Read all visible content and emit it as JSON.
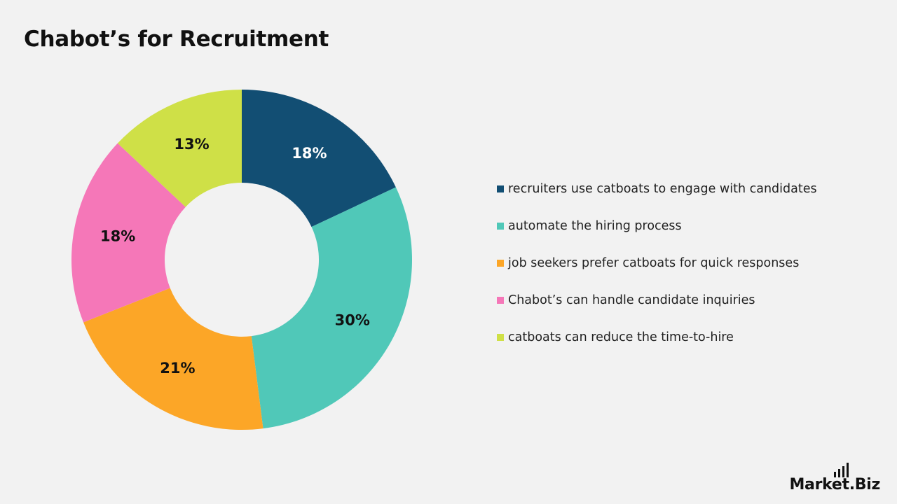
{
  "title": "Chabot’s for Recruitment",
  "chart_data": {
    "type": "donut",
    "start_angle": "12 o'clock, clockwise",
    "legend_position": "right",
    "slices": [
      {
        "label": "recruiters use catboats to engage with candidates",
        "value": 18,
        "value_label": "18%",
        "color": "#124e73",
        "label_color": "#ffffff"
      },
      {
        "label": "automate the hiring process",
        "value": 30,
        "value_label": "30%",
        "color": "#50c8b8",
        "label_color": "#111111"
      },
      {
        "label": "job seekers prefer catboats for quick responses",
        "value": 21,
        "value_label": "21%",
        "color": "#fca627",
        "label_color": "#111111"
      },
      {
        "label": "Chabot’s can handle candidate inquiries",
        "value": 18,
        "value_label": "18%",
        "color": "#f577b8",
        "label_color": "#111111"
      },
      {
        "label": "catboats can reduce the time-to-hire",
        "value": 13,
        "value_label": "13%",
        "color": "#cfe047",
        "label_color": "#111111"
      }
    ]
  },
  "brand": {
    "text_prefix": "Mark",
    "text_middle": "et",
    "text_suffix": ".Biz",
    "icon": "bar-chart-icon"
  }
}
